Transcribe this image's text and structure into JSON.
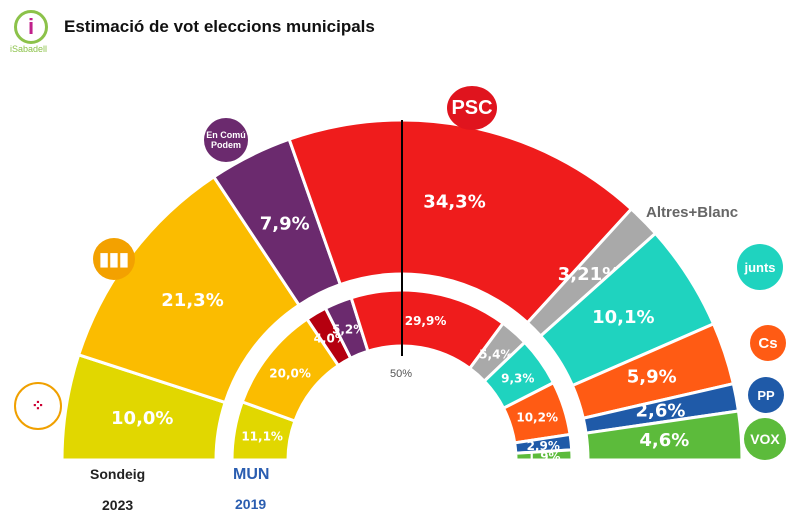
{
  "title": "Estimació de vot eleccions municipals",
  "brand": "iSabadell",
  "chart_data": {
    "type": "pie",
    "title": "Estimació de vot eleccions municipals",
    "center_marker": "50%",
    "rings": [
      {
        "name": "Sondeig 2023",
        "label_line1": "Sondeig",
        "label_line2": "2023",
        "values": [
          10.0,
          21.3,
          7.9,
          34.3,
          3.21,
          10.1,
          5.9,
          2.6,
          4.6
        ],
        "labels": [
          "10,0%",
          "21,3%",
          "7,9%",
          "34,3%",
          "3,21%",
          "10,1%",
          "5,9%",
          "2,6%",
          "4,6%"
        ],
        "colors": [
          "#e1d700",
          "#fbbc00",
          "#6b2a6e",
          "#ef1c1c",
          "#a9a9a9",
          "#1fd3bf",
          "#ff5b14",
          "#1f5aa8",
          "#5cbb3b"
        ]
      },
      {
        "name": "MUN 2019",
        "label_line1": "MUN",
        "label_line2": "2019",
        "values": [
          11.1,
          20.0,
          4.0,
          5.2,
          29.9,
          5.4,
          9.3,
          10.2,
          2.9,
          1.9
        ],
        "labels": [
          "11,1%",
          "20,0%",
          "4,0%",
          "5,2%",
          "29,9%",
          "5,4%",
          "9,3%",
          "10,2%",
          "2,9%",
          "1,9%"
        ],
        "colors": [
          "#e1d700",
          "#fbbc00",
          "#b5000f",
          "#6b2a6e",
          "#ef1c1c",
          "#a9a9a9",
          "#1fd3bf",
          "#ff5b14",
          "#1f5aa8",
          "#5cbb3b"
        ]
      }
    ],
    "parties": {
      "psc": "PSC",
      "ecp": "En Comú Podem",
      "altres": "Altres+Blanc",
      "junts": "junts",
      "cs": "Cs",
      "pp": "PP",
      "vox": "VOX"
    }
  }
}
